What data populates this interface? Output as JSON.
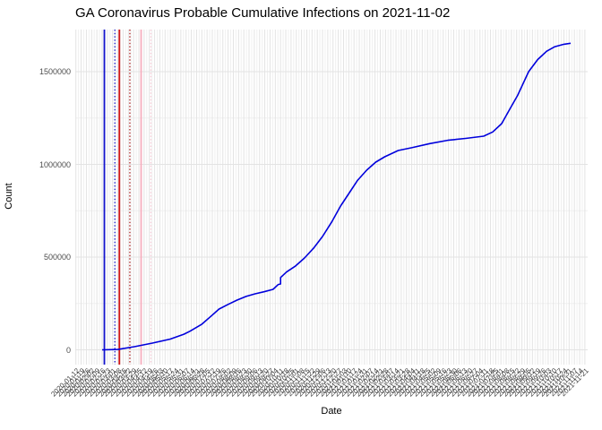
{
  "title": "GA Coronavirus Probable Cumulative Infections on 2021-11-02",
  "axes": {
    "x_label": "Date",
    "y_label": "Count",
    "y_ticks": [
      {
        "value": 0,
        "label": "0"
      },
      {
        "value": 500000,
        "label": "500000"
      },
      {
        "value": 1000000,
        "label": "1000000"
      },
      {
        "value": 1500000,
        "label": "1500000"
      }
    ],
    "x_tick_dates": [
      "2020-01-12",
      "2020-01-19",
      "2020-01-26",
      "2020-02-02",
      "2020-02-09",
      "2020-02-16",
      "2020-02-23",
      "2020-03-01",
      "2020-03-08",
      "2020-03-15",
      "2020-03-22",
      "2020-03-29",
      "2020-04-05",
      "2020-04-12",
      "2020-04-19",
      "2020-04-26",
      "2020-05-03",
      "2020-05-10",
      "2020-05-17",
      "2020-05-24",
      "2020-05-31",
      "2020-06-07",
      "2020-06-14",
      "2020-06-21",
      "2020-06-28",
      "2020-07-05",
      "2020-07-12",
      "2020-07-19",
      "2020-07-26",
      "2020-08-02",
      "2020-08-09",
      "2020-08-16",
      "2020-08-23",
      "2020-08-30",
      "2020-09-06",
      "2020-09-13",
      "2020-09-20",
      "2020-09-27",
      "2020-10-04",
      "2020-10-11",
      "2020-10-18",
      "2020-10-25",
      "2020-11-01",
      "2020-11-08",
      "2020-11-15",
      "2020-11-22",
      "2020-11-29",
      "2020-12-06",
      "2020-12-13",
      "2020-12-20",
      "2020-12-27",
      "2021-01-03",
      "2021-01-10",
      "2021-01-17",
      "2021-01-24",
      "2021-01-31",
      "2021-02-07",
      "2021-02-14",
      "2021-02-21",
      "2021-02-28",
      "2021-03-07",
      "2021-03-14",
      "2021-03-21",
      "2021-03-28",
      "2021-04-04",
      "2021-04-11",
      "2021-04-18",
      "2021-04-25",
      "2021-05-02",
      "2021-05-09",
      "2021-05-16",
      "2021-05-23",
      "2021-05-30",
      "2021-06-06",
      "2021-06-13",
      "2021-06-20",
      "2021-06-27",
      "2021-07-04",
      "2021-07-11",
      "2021-07-18",
      "2021-07-25",
      "2021-08-01",
      "2021-08-08",
      "2021-08-15",
      "2021-08-22",
      "2021-08-29",
      "2021-09-05",
      "2021-09-12",
      "2021-09-19",
      "2021-09-26",
      "2021-10-03",
      "2021-10-10",
      "2021-10-17",
      "2021-10-24",
      "2021-10-31",
      "2021-11-07",
      "2021-11-14",
      "2021-11-21"
    ]
  },
  "colors": {
    "line": "#0000DC",
    "grid_major": "#E3E3E3",
    "grid_minor": "#F0F0F0",
    "axis_text": "#4d4d4d",
    "background": "#FFFFFF"
  },
  "event_lines": [
    {
      "date": "2020-02-19",
      "color": "#1414CC",
      "style": "solid"
    },
    {
      "date": "2020-03-04",
      "color": "#2A2ACC",
      "style": "dotted"
    },
    {
      "date": "2020-03-10",
      "color": "#D01616",
      "style": "solid"
    },
    {
      "date": "2020-03-24",
      "color": "#B03030",
      "style": "dotted"
    },
    {
      "date": "2020-04-08",
      "color": "#F6AEBE",
      "style": "solid"
    },
    {
      "date": "2020-04-21",
      "color": "#F9CFDA",
      "style": "dotted"
    }
  ],
  "chart_data": {
    "type": "line",
    "title": "GA Coronavirus Probable Cumulative Infections on 2021-11-02",
    "xlabel": "Date",
    "ylabel": "Count",
    "x_range": [
      "2020-02-16",
      "2021-11-02"
    ],
    "ylim": [
      0,
      1727500
    ],
    "grid": "on",
    "legend": "none",
    "series": [
      {
        "name": "probable cumulative infections",
        "color": "#0000DC",
        "columns": [
          "date",
          "count"
        ],
        "points": [
          [
            "2020-02-16",
            0
          ],
          [
            "2020-03-08",
            2000
          ],
          [
            "2020-03-30",
            17000
          ],
          [
            "2020-04-23",
            36000
          ],
          [
            "2020-05-17",
            58000
          ],
          [
            "2020-06-04",
            84000
          ],
          [
            "2020-06-12",
            100000
          ],
          [
            "2020-06-28",
            138000
          ],
          [
            "2020-07-10",
            180000
          ],
          [
            "2020-07-21",
            220000
          ],
          [
            "2020-08-02",
            245000
          ],
          [
            "2020-08-14",
            268000
          ],
          [
            "2020-08-26",
            288000
          ],
          [
            "2020-09-07",
            302000
          ],
          [
            "2020-09-19",
            313000
          ],
          [
            "2020-10-01",
            326000
          ],
          [
            "2020-10-08",
            352000
          ],
          [
            "2020-10-11",
            355000
          ],
          [
            "2020-10-11",
            390000
          ],
          [
            "2020-10-19",
            420000
          ],
          [
            "2020-10-31",
            452000
          ],
          [
            "2020-11-12",
            495000
          ],
          [
            "2020-11-24",
            548000
          ],
          [
            "2020-12-06",
            611000
          ],
          [
            "2020-12-18",
            688000
          ],
          [
            "2020-12-30",
            775000
          ],
          [
            "2021-01-11",
            848000
          ],
          [
            "2021-01-22",
            915000
          ],
          [
            "2021-02-03",
            969000
          ],
          [
            "2021-02-15",
            1012000
          ],
          [
            "2021-02-27",
            1041000
          ],
          [
            "2021-03-17",
            1075000
          ],
          [
            "2021-04-04",
            1090000
          ],
          [
            "2021-04-28",
            1112000
          ],
          [
            "2021-05-22",
            1130000
          ],
          [
            "2021-06-15",
            1140000
          ],
          [
            "2021-07-09",
            1152000
          ],
          [
            "2021-07-21",
            1175000
          ],
          [
            "2021-08-02",
            1220000
          ],
          [
            "2021-08-14",
            1307000
          ],
          [
            "2021-08-23",
            1370000
          ],
          [
            "2021-09-07",
            1500000
          ],
          [
            "2021-09-19",
            1565000
          ],
          [
            "2021-10-01",
            1610000
          ],
          [
            "2021-10-12",
            1635000
          ],
          [
            "2021-10-24",
            1648000
          ],
          [
            "2021-11-02",
            1653000
          ]
        ]
      }
    ]
  }
}
